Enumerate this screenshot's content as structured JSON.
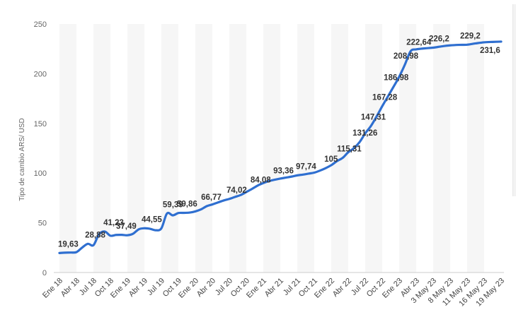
{
  "chart_data": {
    "type": "line",
    "title": "",
    "xlabel": "",
    "ylabel": "Tipo de cambio ARS/ USD",
    "ylim": [
      0,
      250
    ],
    "yticks": [
      0,
      50,
      100,
      150,
      200,
      250
    ],
    "grid": "alternating vertical bands",
    "legend": "none",
    "series_color": "#2f6fd0",
    "band_color": "#f6f6f6",
    "xtick_labels": [
      "Ene 18",
      "Abr 18",
      "Jul 18",
      "Oct 18",
      "Ene 19",
      "Abr 19",
      "Jul 19",
      "Oct 19",
      "Ene 20",
      "Abr 20",
      "Jul 20",
      "Oct 20",
      "Ene 21",
      "Abr 21",
      "Jul 21",
      "Oct 21",
      "Ene 22",
      "Abr 22",
      "Jul 22",
      "Oct 22",
      "Ene 23",
      "Abr 23",
      "3 May 23",
      "8 May 23",
      "11 May 23",
      "16 May 23",
      "19 May 23"
    ],
    "series": [
      {
        "values": [
          {
            "i": 0,
            "y": 19.63
          },
          {
            "i": 0.33,
            "y": 20.0
          },
          {
            "i": 0.67,
            "y": 20.1
          },
          {
            "i": 1,
            "y": 20.5
          },
          {
            "i": 1.33,
            "y": 25
          },
          {
            "i": 1.67,
            "y": 28.88
          },
          {
            "i": 2,
            "y": 27.5
          },
          {
            "i": 2.33,
            "y": 38.5
          },
          {
            "i": 2.67,
            "y": 41.23
          },
          {
            "i": 3,
            "y": 37.0
          },
          {
            "i": 3.33,
            "y": 37.8
          },
          {
            "i": 3.67,
            "y": 37.9
          },
          {
            "i": 4,
            "y": 37.49
          },
          {
            "i": 4.33,
            "y": 39
          },
          {
            "i": 4.67,
            "y": 43.5
          },
          {
            "i": 5,
            "y": 44.55
          },
          {
            "i": 5.33,
            "y": 44.0
          },
          {
            "i": 5.67,
            "y": 42.5
          },
          {
            "i": 6,
            "y": 44.5
          },
          {
            "i": 6.33,
            "y": 59.39
          },
          {
            "i": 6.67,
            "y": 57.5
          },
          {
            "i": 7,
            "y": 59.86
          },
          {
            "i": 7.33,
            "y": 60.0
          },
          {
            "i": 7.67,
            "y": 60.3
          },
          {
            "i": 8,
            "y": 61.5
          },
          {
            "i": 8.33,
            "y": 63.5
          },
          {
            "i": 8.67,
            "y": 66.77
          },
          {
            "i": 9,
            "y": 68.5
          },
          {
            "i": 9.33,
            "y": 70.5
          },
          {
            "i": 9.67,
            "y": 72.5
          },
          {
            "i": 10,
            "y": 74.02
          },
          {
            "i": 10.33,
            "y": 76
          },
          {
            "i": 10.67,
            "y": 78
          },
          {
            "i": 11,
            "y": 81
          },
          {
            "i": 11.33,
            "y": 84.08
          },
          {
            "i": 11.67,
            "y": 87.5
          },
          {
            "i": 12,
            "y": 90
          },
          {
            "i": 12.33,
            "y": 92.0
          },
          {
            "i": 12.67,
            "y": 93.36
          },
          {
            "i": 13,
            "y": 94.5
          },
          {
            "i": 13.33,
            "y": 95.5
          },
          {
            "i": 13.67,
            "y": 96.5
          },
          {
            "i": 14,
            "y": 97.74
          },
          {
            "i": 14.33,
            "y": 98.5
          },
          {
            "i": 14.67,
            "y": 99.5
          },
          {
            "i": 15,
            "y": 100.5
          },
          {
            "i": 15.33,
            "y": 102.5
          },
          {
            "i": 15.67,
            "y": 105
          },
          {
            "i": 16,
            "y": 108
          },
          {
            "i": 16.33,
            "y": 112
          },
          {
            "i": 16.67,
            "y": 115.31
          },
          {
            "i": 17,
            "y": 121
          },
          {
            "i": 17.33,
            "y": 125
          },
          {
            "i": 17.67,
            "y": 131.26
          },
          {
            "i": 18,
            "y": 140
          },
          {
            "i": 18.33,
            "y": 147.31
          },
          {
            "i": 18.67,
            "y": 157
          },
          {
            "i": 19,
            "y": 167.28
          },
          {
            "i": 19.33,
            "y": 177
          },
          {
            "i": 19.67,
            "y": 186.98
          },
          {
            "i": 20,
            "y": 197
          },
          {
            "i": 20.33,
            "y": 208.98
          },
          {
            "i": 20.67,
            "y": 222.64
          },
          {
            "i": 21,
            "y": 224.5
          },
          {
            "i": 21.5,
            "y": 225.5
          },
          {
            "i": 22,
            "y": 226.2
          },
          {
            "i": 22.5,
            "y": 227.5
          },
          {
            "i": 23,
            "y": 228.5
          },
          {
            "i": 23.5,
            "y": 229.0
          },
          {
            "i": 24,
            "y": 229.2
          },
          {
            "i": 24.5,
            "y": 230.5
          },
          {
            "i": 25,
            "y": 231.6
          },
          {
            "i": 25.5,
            "y": 232.0
          },
          {
            "i": 26,
            "y": 232.3
          }
        ]
      }
    ],
    "data_labels": [
      {
        "text": "19,63",
        "i": 0,
        "y": 19.63,
        "dx": -2,
        "dy": -9
      },
      {
        "text": "28,88",
        "i": 1.67,
        "y": 28.88,
        "dx": -4,
        "dy": -9
      },
      {
        "text": "41,23",
        "i": 2.67,
        "y": 41.23,
        "dx": -2,
        "dy": -9
      },
      {
        "text": "37,49",
        "i": 4,
        "y": 37.49,
        "dx": -16,
        "dy": -9
      },
      {
        "text": "44,55",
        "i": 5,
        "y": 44.55,
        "dx": -4,
        "dy": -9
      },
      {
        "text": "59,39",
        "i": 6.33,
        "y": 59.39,
        "dx": -6,
        "dy": -9
      },
      {
        "text": "59,86",
        "i": 7,
        "y": 59.86,
        "dx": -2,
        "dy": -9
      },
      {
        "text": "66,77",
        "i": 8.67,
        "y": 66.77,
        "dx": -8,
        "dy": -9
      },
      {
        "text": "74,02",
        "i": 10,
        "y": 74.02,
        "dx": -4,
        "dy": -9
      },
      {
        "text": "84,08",
        "i": 11.33,
        "y": 84.08,
        "dx": -2,
        "dy": -9
      },
      {
        "text": "93,36",
        "i": 12.67,
        "y": 93.36,
        "dx": -2,
        "dy": -9
      },
      {
        "text": "97,74",
        "i": 14,
        "y": 97.74,
        "dx": -2,
        "dy": -9
      },
      {
        "text": "105",
        "i": 15.67,
        "y": 105,
        "dx": -2,
        "dy": -9
      },
      {
        "text": "115,31",
        "i": 16.67,
        "y": 115.31,
        "dx": -8,
        "dy": -9
      },
      {
        "text": "131,26",
        "i": 17.67,
        "y": 131.26,
        "dx": -10,
        "dy": -9
      },
      {
        "text": "147,31",
        "i": 18.33,
        "y": 147.31,
        "dx": -14,
        "dy": -9
      },
      {
        "text": "167,28",
        "i": 19,
        "y": 167.28,
        "dx": -14,
        "dy": -9
      },
      {
        "text": "186,98",
        "i": 19.67,
        "y": 186.98,
        "dx": -14,
        "dy": -9
      },
      {
        "text": "208,98",
        "i": 20.33,
        "y": 208.98,
        "dx": -16,
        "dy": -9
      },
      {
        "text": "222,64",
        "i": 20.67,
        "y": 222.64,
        "dx": -6,
        "dy": -9
      },
      {
        "text": "226,2",
        "i": 22,
        "y": 226.2,
        "dx": -6,
        "dy": -9
      },
      {
        "text": "229,2",
        "i": 24,
        "y": 229.2,
        "dx": -10,
        "dy": -9
      },
      {
        "text": "231,6",
        "i": 25,
        "y": 231.6,
        "dx": -6,
        "dy": 15
      }
    ]
  }
}
